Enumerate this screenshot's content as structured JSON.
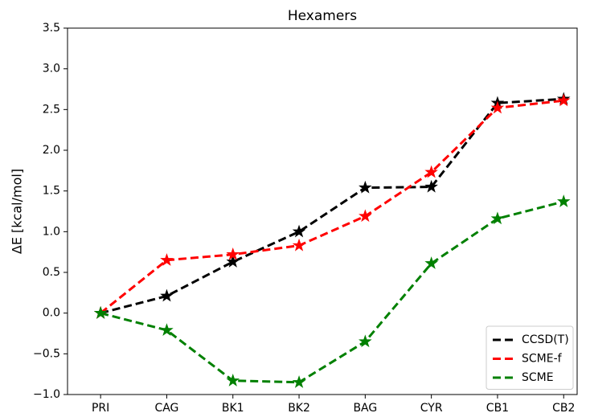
{
  "chart_data": {
    "type": "line",
    "title": "Hexamers",
    "ylabel": "ΔE [kcal/mol]",
    "categories": [
      "PRI",
      "CAG",
      "BK1",
      "BK2",
      "BAG",
      "CYR",
      "CB1",
      "CB2"
    ],
    "series": [
      {
        "name": "CCSD(T)",
        "color": "#000000",
        "values": [
          0,
          0.21,
          0.63,
          1.0,
          1.54,
          1.55,
          2.58,
          2.63
        ]
      },
      {
        "name": "SCME-f",
        "color": "#ff0000",
        "values": [
          0,
          0.65,
          0.72,
          0.83,
          1.19,
          1.73,
          2.52,
          2.61
        ]
      },
      {
        "name": "SCME",
        "color": "#008000",
        "values": [
          0,
          -0.21,
          -0.83,
          -0.85,
          -0.35,
          0.61,
          1.16,
          1.37
        ]
      }
    ],
    "ylim": [
      -1.0,
      3.5
    ],
    "yticks": [
      {
        "value": -1.0,
        "label": "−1.0"
      },
      {
        "value": -0.5,
        "label": "−0.5"
      },
      {
        "value": 0.0,
        "label": "0.0"
      },
      {
        "value": 0.5,
        "label": "0.5"
      },
      {
        "value": 1.0,
        "label": "1.0"
      },
      {
        "value": 1.5,
        "label": "1.5"
      },
      {
        "value": 2.0,
        "label": "2.0"
      },
      {
        "value": 2.5,
        "label": "2.5"
      },
      {
        "value": 3.0,
        "label": "3.0"
      },
      {
        "value": 3.5,
        "label": "3.5"
      }
    ],
    "legend": "lower right",
    "grid": false
  }
}
